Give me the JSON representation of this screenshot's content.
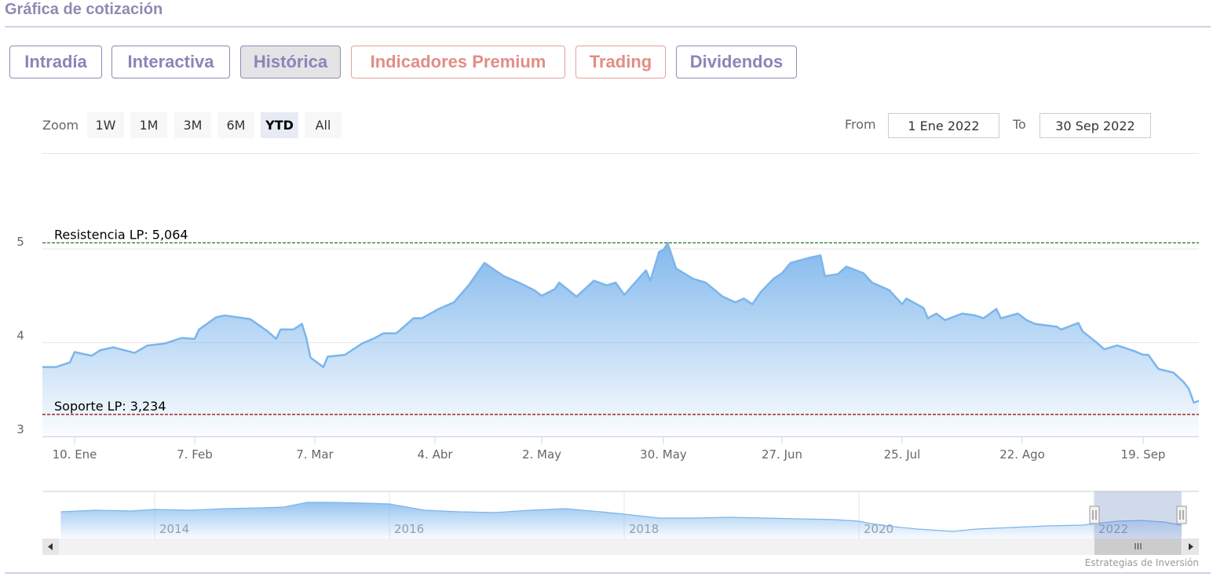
{
  "header": {
    "title": "Gráfica de cotización"
  },
  "tabs": [
    {
      "label": "Intradía",
      "active": false,
      "color": "#8a85b8"
    },
    {
      "label": "Interactiva",
      "active": false,
      "color": "#8a85b8"
    },
    {
      "label": "Histórica",
      "active": true,
      "color": "#8a85b8"
    },
    {
      "label": "Indicadores Premium",
      "active": false,
      "color": "#e38d85"
    },
    {
      "label": "Trading",
      "active": false,
      "color": "#e38d85"
    },
    {
      "label": "Dividendos",
      "active": false,
      "color": "#8a85b8"
    }
  ],
  "range_selector": {
    "zoom_label": "Zoom",
    "buttons": [
      "1W",
      "1M",
      "3M",
      "6M",
      "YTD",
      "All"
    ],
    "selected": "YTD",
    "from_label": "From",
    "from_value": "1 Ene 2022",
    "to_label": "To",
    "to_value": "30 Sep 2022"
  },
  "credit": "Estrategias de Inversión",
  "chart_data": {
    "type": "area",
    "ylim": [
      3,
      5.25
    ],
    "yticks": [
      "3",
      "4",
      "5"
    ],
    "ytick_values": [
      3,
      4,
      5
    ],
    "xticks": [
      {
        "label": "10. Ene",
        "date": "2022-01-10"
      },
      {
        "label": "7. Feb",
        "date": "2022-02-07"
      },
      {
        "label": "7. Mar",
        "date": "2022-03-07"
      },
      {
        "label": "4. Abr",
        "date": "2022-04-04"
      },
      {
        "label": "2. May",
        "date": "2022-05-02"
      },
      {
        "label": "30. May",
        "date": "2022-05-30"
      },
      {
        "label": "27. Jun",
        "date": "2022-06-27"
      },
      {
        "label": "25. Jul",
        "date": "2022-07-25"
      },
      {
        "label": "22. Ago",
        "date": "2022-08-22"
      },
      {
        "label": "19. Sep",
        "date": "2022-09-19"
      }
    ],
    "grid": true,
    "series_color": "#7cb5ec",
    "resistance": {
      "label": "Resistencia LP: 5,064",
      "value": 5.064,
      "color": "#1a7a1a"
    },
    "support": {
      "label": "Soporte LP: 3,234",
      "value": 3.234,
      "color": "#8b0000"
    },
    "series": [
      {
        "points": [
          [
            "2022-01-03",
            3.74
          ],
          [
            "2022-01-06",
            3.74
          ],
          [
            "2022-01-09",
            3.79
          ],
          [
            "2022-01-10",
            3.9
          ],
          [
            "2022-01-14",
            3.86
          ],
          [
            "2022-01-16",
            3.92
          ],
          [
            "2022-01-19",
            3.95
          ],
          [
            "2022-01-24",
            3.89
          ],
          [
            "2022-01-27",
            3.97
          ],
          [
            "2022-01-31",
            3.99
          ],
          [
            "2022-02-04",
            4.05
          ],
          [
            "2022-02-07",
            4.04
          ],
          [
            "2022-02-08",
            4.14
          ],
          [
            "2022-02-12",
            4.27
          ],
          [
            "2022-02-14",
            4.29
          ],
          [
            "2022-02-17",
            4.27
          ],
          [
            "2022-02-20",
            4.25
          ],
          [
            "2022-02-24",
            4.12
          ],
          [
            "2022-02-26",
            4.04
          ],
          [
            "2022-02-27",
            4.14
          ],
          [
            "2022-03-02",
            4.14
          ],
          [
            "2022-03-04",
            4.2
          ],
          [
            "2022-03-05",
            4.05
          ],
          [
            "2022-03-06",
            3.84
          ],
          [
            "2022-03-09",
            3.74
          ],
          [
            "2022-03-10",
            3.85
          ],
          [
            "2022-03-14",
            3.87
          ],
          [
            "2022-03-18",
            3.99
          ],
          [
            "2022-03-21",
            4.05
          ],
          [
            "2022-03-23",
            4.1
          ],
          [
            "2022-03-26",
            4.1
          ],
          [
            "2022-03-30",
            4.26
          ],
          [
            "2022-04-01",
            4.26
          ],
          [
            "2022-04-05",
            4.36
          ],
          [
            "2022-04-09",
            4.43
          ],
          [
            "2022-04-13",
            4.62
          ],
          [
            "2022-04-17",
            4.85
          ],
          [
            "2022-04-22",
            4.71
          ],
          [
            "2022-04-26",
            4.64
          ],
          [
            "2022-04-30",
            4.56
          ],
          [
            "2022-05-02",
            4.5
          ],
          [
            "2022-05-05",
            4.57
          ],
          [
            "2022-05-06",
            4.64
          ],
          [
            "2022-05-10",
            4.49
          ],
          [
            "2022-05-14",
            4.66
          ],
          [
            "2022-05-17",
            4.61
          ],
          [
            "2022-05-19",
            4.64
          ],
          [
            "2022-05-21",
            4.51
          ],
          [
            "2022-05-25",
            4.72
          ],
          [
            "2022-05-26",
            4.77
          ],
          [
            "2022-05-27",
            4.66
          ],
          [
            "2022-05-29",
            4.97
          ],
          [
            "2022-05-30",
            4.99
          ],
          [
            "2022-05-31",
            5.06
          ],
          [
            "2022-06-02",
            4.79
          ],
          [
            "2022-06-06",
            4.68
          ],
          [
            "2022-06-09",
            4.64
          ],
          [
            "2022-06-13",
            4.49
          ],
          [
            "2022-06-16",
            4.43
          ],
          [
            "2022-06-18",
            4.47
          ],
          [
            "2022-06-20",
            4.41
          ],
          [
            "2022-06-22",
            4.54
          ],
          [
            "2022-06-25",
            4.68
          ],
          [
            "2022-06-27",
            4.74
          ],
          [
            "2022-06-29",
            4.85
          ],
          [
            "2022-07-03",
            4.9
          ],
          [
            "2022-07-06",
            4.93
          ],
          [
            "2022-07-07",
            4.71
          ],
          [
            "2022-07-10",
            4.73
          ],
          [
            "2022-07-12",
            4.81
          ],
          [
            "2022-07-16",
            4.74
          ],
          [
            "2022-07-18",
            4.64
          ],
          [
            "2022-07-22",
            4.56
          ],
          [
            "2022-07-25",
            4.41
          ],
          [
            "2022-07-26",
            4.47
          ],
          [
            "2022-07-30",
            4.37
          ],
          [
            "2022-07-31",
            4.26
          ],
          [
            "2022-08-02",
            4.31
          ],
          [
            "2022-08-04",
            4.24
          ],
          [
            "2022-08-08",
            4.31
          ],
          [
            "2022-08-11",
            4.29
          ],
          [
            "2022-08-13",
            4.26
          ],
          [
            "2022-08-16",
            4.36
          ],
          [
            "2022-08-17",
            4.26
          ],
          [
            "2022-08-21",
            4.31
          ],
          [
            "2022-08-23",
            4.24
          ],
          [
            "2022-08-25",
            4.2
          ],
          [
            "2022-08-30",
            4.17
          ],
          [
            "2022-08-31",
            4.14
          ],
          [
            "2022-09-04",
            4.21
          ],
          [
            "2022-09-05",
            4.12
          ],
          [
            "2022-09-08",
            4.01
          ],
          [
            "2022-09-10",
            3.93
          ],
          [
            "2022-09-13",
            3.97
          ],
          [
            "2022-09-17",
            3.91
          ],
          [
            "2022-09-19",
            3.87
          ],
          [
            "2022-09-20",
            3.87
          ],
          [
            "2022-09-22",
            3.72
          ],
          [
            "2022-09-25",
            3.68
          ],
          [
            "2022-09-27",
            3.58
          ],
          [
            "2022-09-28",
            3.51
          ],
          [
            "2022-09-29",
            3.36
          ],
          [
            "2022-09-30",
            3.38
          ]
        ]
      }
    ],
    "navigator": {
      "xticks": [
        "2014",
        "2016",
        "2018",
        "2020",
        "2022"
      ],
      "xtick_values": [
        2014,
        2016,
        2018,
        2020,
        2022
      ],
      "selected_range": [
        "1 Ene 2022",
        "30 Sep 2022"
      ],
      "points": [
        [
          2013.2,
          5.8
        ],
        [
          2013.5,
          6.0
        ],
        [
          2013.8,
          5.9
        ],
        [
          2014.0,
          6.1
        ],
        [
          2014.3,
          6.0
        ],
        [
          2014.6,
          6.2
        ],
        [
          2014.9,
          6.3
        ],
        [
          2015.1,
          6.4
        ],
        [
          2015.3,
          7.0
        ],
        [
          2015.5,
          7.0
        ],
        [
          2015.8,
          6.9
        ],
        [
          2016.0,
          6.8
        ],
        [
          2016.3,
          6.0
        ],
        [
          2016.6,
          5.8
        ],
        [
          2016.9,
          5.7
        ],
        [
          2017.2,
          6.0
        ],
        [
          2017.5,
          6.2
        ],
        [
          2017.8,
          5.8
        ],
        [
          2018.0,
          5.5
        ],
        [
          2018.3,
          5.0
        ],
        [
          2018.6,
          5.0
        ],
        [
          2018.9,
          5.1
        ],
        [
          2019.2,
          5.0
        ],
        [
          2019.5,
          4.9
        ],
        [
          2019.8,
          4.8
        ],
        [
          2020.0,
          4.6
        ],
        [
          2020.1,
          4.3
        ],
        [
          2020.3,
          3.9
        ],
        [
          2020.5,
          3.6
        ],
        [
          2020.8,
          3.3
        ],
        [
          2021.0,
          3.6
        ],
        [
          2021.3,
          3.8
        ],
        [
          2021.6,
          4.0
        ],
        [
          2021.9,
          4.1
        ],
        [
          2022.2,
          4.6
        ],
        [
          2022.4,
          4.7
        ],
        [
          2022.6,
          4.5
        ],
        [
          2022.75,
          4.1
        ]
      ]
    }
  }
}
